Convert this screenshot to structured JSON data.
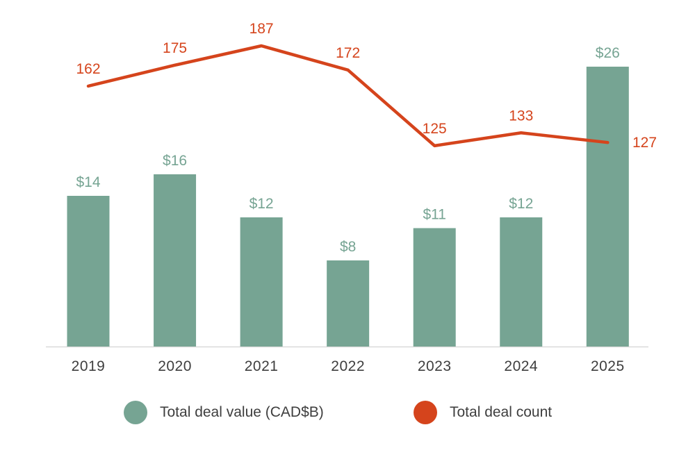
{
  "chart_data": {
    "type": "combo",
    "title": "",
    "categories": [
      "2019",
      "2020",
      "2021",
      "2022",
      "2023",
      "2024",
      "2025"
    ],
    "series": [
      {
        "name": "Total deal value (CAD$B)",
        "type": "bar",
        "values": [
          14,
          16,
          12,
          8,
          11,
          12,
          26
        ],
        "labels": [
          "$14",
          "$16",
          "$12",
          "$8",
          "$11",
          "$12",
          "$26"
        ],
        "color": "#76a493"
      },
      {
        "name": "Total deal count",
        "type": "line",
        "values": [
          162,
          175,
          187,
          172,
          125,
          133,
          127
        ],
        "labels": [
          "162",
          "175",
          "187",
          "172",
          "125",
          "133",
          "127"
        ],
        "color": "#d5441c"
      }
    ],
    "xlabel": "",
    "ylabel": "",
    "bar_ylim": [
      0,
      30
    ],
    "line_ylim": [
      100,
      200
    ],
    "grid": false,
    "value_labels_shown": true,
    "legend_position": "bottom",
    "axis": {
      "baseline_color": "#d9d9d9",
      "tick_label_color": "#3e3e3e"
    }
  }
}
